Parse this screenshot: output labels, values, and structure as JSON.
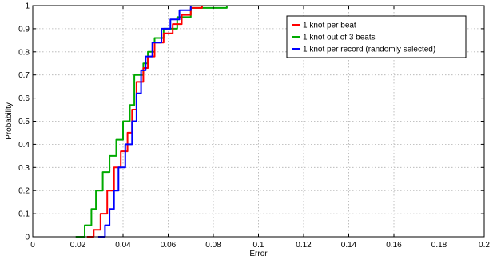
{
  "chart_data": {
    "type": "line",
    "xlabel": "Error",
    "ylabel": "Probability",
    "xlim": [
      0,
      0.2
    ],
    "ylim": [
      0,
      1
    ],
    "x_ticks": [
      0,
      0.02,
      0.04,
      0.06,
      0.08,
      0.1,
      0.12,
      0.14,
      0.16,
      0.18,
      0.2
    ],
    "x_tick_labels": [
      "0",
      "0.02",
      "0.04",
      "0.06",
      "0.08",
      "0.1",
      "0.12",
      "0.14",
      "0.16",
      "0.18",
      "0.2"
    ],
    "y_ticks": [
      0,
      0.1,
      0.2,
      0.3,
      0.4,
      0.5,
      0.6,
      0.7,
      0.8,
      0.9,
      1
    ],
    "y_tick_labels": [
      "0",
      "0.1",
      "0.2",
      "0.3",
      "0.4",
      "0.5",
      "0.6",
      "0.7",
      "0.8",
      "0.9",
      "1"
    ],
    "grid": true,
    "legend_position": "top-right",
    "series": [
      {
        "name": "1 knot per beat",
        "color": "#ff0000",
        "points": [
          [
            0.024,
            0
          ],
          [
            0.027,
            0.03
          ],
          [
            0.03,
            0.1
          ],
          [
            0.033,
            0.2
          ],
          [
            0.036,
            0.3
          ],
          [
            0.039,
            0.37
          ],
          [
            0.042,
            0.45
          ],
          [
            0.044,
            0.55
          ],
          [
            0.046,
            0.67
          ],
          [
            0.049,
            0.73
          ],
          [
            0.051,
            0.78
          ],
          [
            0.054,
            0.84
          ],
          [
            0.058,
            0.88
          ],
          [
            0.062,
            0.92
          ],
          [
            0.066,
            0.96
          ],
          [
            0.07,
            0.99
          ],
          [
            0.075,
            1
          ]
        ]
      },
      {
        "name": "1 knot out of 3 beats",
        "color": "#00aa00",
        "points": [
          [
            0.019,
            0
          ],
          [
            0.023,
            0.05
          ],
          [
            0.026,
            0.12
          ],
          [
            0.028,
            0.2
          ],
          [
            0.031,
            0.28
          ],
          [
            0.034,
            0.35
          ],
          [
            0.037,
            0.42
          ],
          [
            0.04,
            0.5
          ],
          [
            0.043,
            0.57
          ],
          [
            0.045,
            0.7
          ],
          [
            0.049,
            0.75
          ],
          [
            0.051,
            0.8
          ],
          [
            0.054,
            0.86
          ],
          [
            0.058,
            0.9
          ],
          [
            0.064,
            0.95
          ],
          [
            0.07,
            0.99
          ],
          [
            0.086,
            1
          ]
        ]
      },
      {
        "name": "1 knot per record (randomly selected)",
        "color": "#0000ff",
        "points": [
          [
            0.029,
            0
          ],
          [
            0.032,
            0.05
          ],
          [
            0.034,
            0.12
          ],
          [
            0.036,
            0.2
          ],
          [
            0.038,
            0.3
          ],
          [
            0.041,
            0.4
          ],
          [
            0.044,
            0.5
          ],
          [
            0.046,
            0.62
          ],
          [
            0.048,
            0.72
          ],
          [
            0.05,
            0.78
          ],
          [
            0.053,
            0.84
          ],
          [
            0.057,
            0.9
          ],
          [
            0.061,
            0.94
          ],
          [
            0.065,
            0.98
          ],
          [
            0.07,
            1
          ]
        ]
      }
    ]
  }
}
